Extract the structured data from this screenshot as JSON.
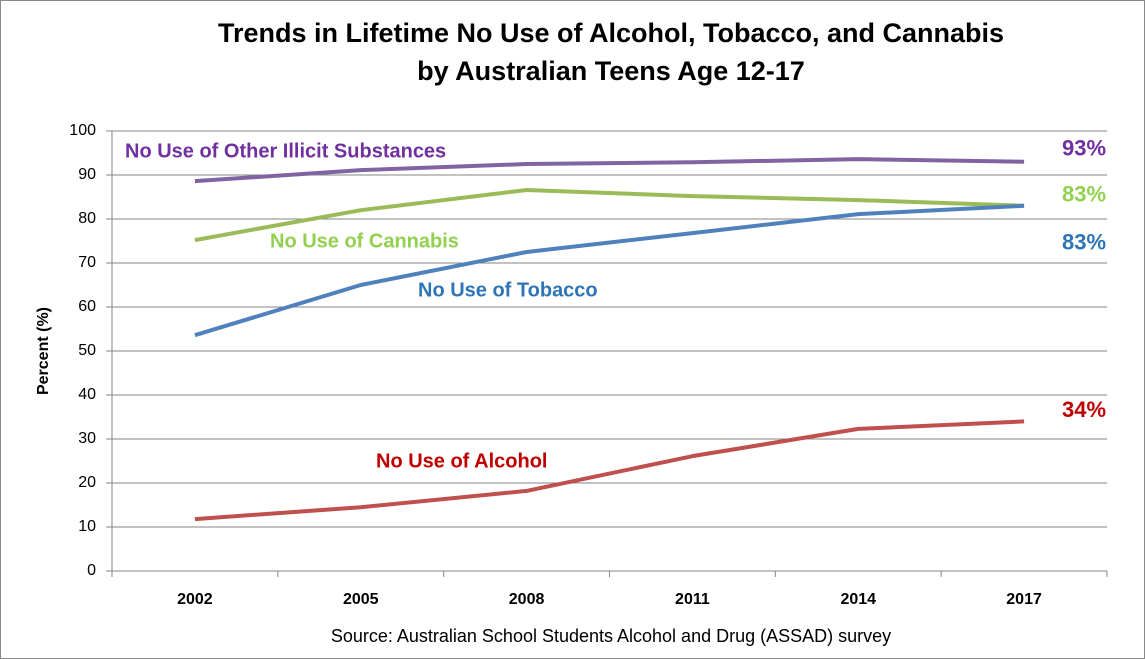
{
  "chart_data": {
    "type": "line",
    "title": [
      "Trends in Lifetime No Use of Alcohol, Tobacco, and Cannabis",
      "by Australian Teens Age 12-17"
    ],
    "y_label": "Percent (%)",
    "source": "Source: Australian School Students Alcohol and Drug (ASSAD) survey",
    "categories": [
      "2002",
      "2005",
      "2008",
      "2011",
      "2014",
      "2017"
    ],
    "ylim": [
      0,
      100
    ],
    "yticks": [
      0,
      10,
      20,
      30,
      40,
      50,
      60,
      70,
      80,
      90,
      100
    ],
    "grid": true,
    "series": [
      {
        "name": "No Use of Other Illicit Substances",
        "color": "#8064a2",
        "label_color": "#7030a0",
        "values": [
          88.6,
          91.1,
          92.5,
          92.9,
          93.6,
          93
        ],
        "value_labels": [
          null,
          null,
          null,
          null,
          null,
          "93%"
        ]
      },
      {
        "name": "No Use of Cannabis",
        "color": "#9bbb59",
        "label_color": "#92d050",
        "values": [
          75.2,
          82,
          86.6,
          85.2,
          84.3,
          83
        ],
        "value_labels": [
          null,
          null,
          null,
          null,
          null,
          "83%"
        ]
      },
      {
        "name": "No Use of Tobacco",
        "color": "#4f81bd",
        "label_color": "#2e75b6",
        "values": [
          53.6,
          65,
          72.5,
          76.8,
          81.1,
          83
        ],
        "value_labels": [
          null,
          null,
          null,
          null,
          null,
          "83%"
        ]
      },
      {
        "name": "No Use of Alcohol",
        "color": "#c0504d",
        "label_color": "#c00000",
        "values": [
          11.8,
          14.5,
          18.2,
          26.1,
          32.3,
          34
        ],
        "value_labels": [
          null,
          null,
          null,
          null,
          null,
          "34%"
        ]
      }
    ]
  }
}
